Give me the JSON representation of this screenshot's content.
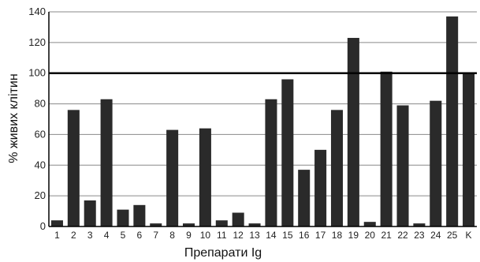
{
  "chart_data": {
    "type": "bar",
    "xlabel": "Препарати Ig",
    "ylabel": "% живих клітин",
    "ylim": [
      0,
      140
    ],
    "yticks": [
      0,
      20,
      40,
      60,
      80,
      100,
      120,
      140
    ],
    "grid": true,
    "reference_line": 100,
    "categories": [
      "1",
      "2",
      "3",
      "4",
      "5",
      "6",
      "7",
      "8",
      "9",
      "10",
      "11",
      "12",
      "13",
      "14",
      "15",
      "16",
      "17",
      "18",
      "19",
      "20",
      "21",
      "22",
      "23",
      "24",
      "25",
      "K"
    ],
    "values": [
      4,
      76,
      17,
      83,
      11,
      14,
      2,
      63,
      2,
      64,
      4,
      9,
      2,
      83,
      96,
      37,
      50,
      76,
      123,
      3,
      101,
      79,
      2,
      82,
      137,
      100
    ],
    "colors": {
      "bar": "#2a2a2a",
      "grid": "#8a8a8a",
      "reference": "#000000"
    }
  }
}
